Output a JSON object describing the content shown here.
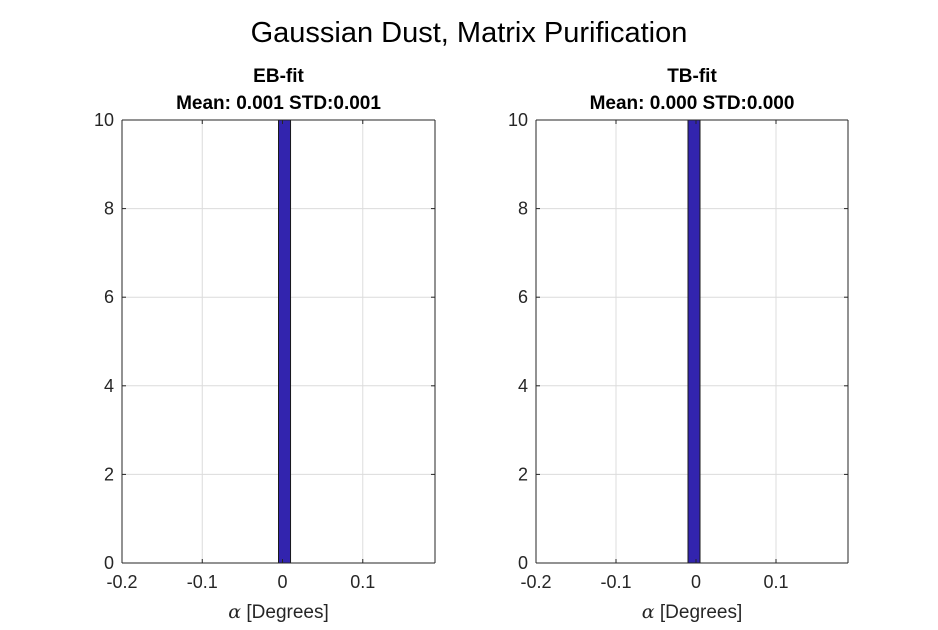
{
  "figure": {
    "title": "Gaussian Dust, Matrix Purification"
  },
  "style": {
    "bar_fill": "#3224AE",
    "bar_edge": "#1A1A1A",
    "grid_color": "#DCDCDC",
    "axis_color": "#262626"
  },
  "chart_data": [
    {
      "type": "bar",
      "title_lines": [
        "EB-fit",
        "Mean: 0.001 STD:0.001"
      ],
      "xlabel": "α [Degrees]",
      "ylabel": "",
      "xlim": [
        -0.2,
        0.19
      ],
      "ylim": [
        0,
        10
      ],
      "xticks": [
        -0.2,
        -0.1,
        0,
        0.1
      ],
      "xtick_labels": [
        "-0.2",
        "-0.1",
        "0",
        "0.1"
      ],
      "yticks": [
        0,
        2,
        4,
        6,
        8,
        10
      ],
      "ytick_labels": [
        "0",
        "2",
        "4",
        "6",
        "8",
        "10"
      ],
      "grid": true,
      "bars": [
        {
          "x_start": -0.005,
          "x_end": 0.01,
          "value": 10
        }
      ]
    },
    {
      "type": "bar",
      "title_lines": [
        "TB-fit",
        "Mean: 0.000 STD:0.000"
      ],
      "xlabel": "α [Degrees]",
      "ylabel": "",
      "xlim": [
        -0.2,
        0.19
      ],
      "ylim": [
        0,
        10
      ],
      "xticks": [
        -0.2,
        -0.1,
        0,
        0.1
      ],
      "xtick_labels": [
        "-0.2",
        "-0.1",
        "0",
        "0.1"
      ],
      "yticks": [
        0,
        2,
        4,
        6,
        8,
        10
      ],
      "ytick_labels": [
        "0",
        "2",
        "4",
        "6",
        "8",
        "10"
      ],
      "grid": true,
      "bars": [
        {
          "x_start": -0.01,
          "x_end": 0.005,
          "value": 10
        }
      ]
    }
  ]
}
